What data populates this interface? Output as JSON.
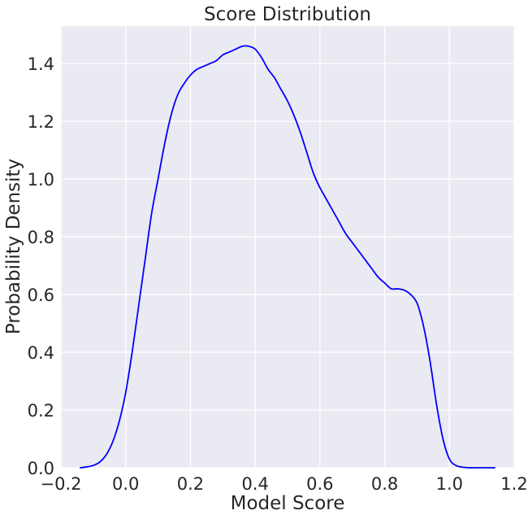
{
  "chart_data": {
    "type": "line",
    "title": "Score Distribution",
    "xlabel": "Model Score",
    "ylabel": "Probability Density",
    "xlim": [
      -0.2,
      1.2
    ],
    "ylim": [
      0.0,
      1.53
    ],
    "x_ticks": [
      -0.2,
      0.0,
      0.2,
      0.4,
      0.6,
      0.8,
      1.0,
      1.2
    ],
    "x_tick_labels": [
      "−0.2",
      "0.0",
      "0.2",
      "0.4",
      "0.6",
      "0.8",
      "1.0",
      "1.2"
    ],
    "y_ticks": [
      0.0,
      0.2,
      0.4,
      0.6,
      0.8,
      1.0,
      1.2,
      1.4
    ],
    "y_tick_labels": [
      "0.0",
      "0.2",
      "0.4",
      "0.6",
      "0.8",
      "1.0",
      "1.2",
      "1.4"
    ],
    "grid": true,
    "legend": "none",
    "background_color": "#eaeaf2",
    "series": [
      {
        "color": "#0000ff",
        "x": [
          -0.14,
          -0.12,
          -0.1,
          -0.08,
          -0.06,
          -0.04,
          -0.02,
          0.0,
          0.02,
          0.04,
          0.06,
          0.08,
          0.1,
          0.12,
          0.14,
          0.16,
          0.18,
          0.2,
          0.22,
          0.24,
          0.26,
          0.28,
          0.3,
          0.32,
          0.34,
          0.36,
          0.38,
          0.4,
          0.42,
          0.44,
          0.46,
          0.48,
          0.5,
          0.52,
          0.54,
          0.56,
          0.58,
          0.6,
          0.62,
          0.64,
          0.66,
          0.68,
          0.7,
          0.72,
          0.74,
          0.76,
          0.78,
          0.8,
          0.82,
          0.84,
          0.86,
          0.88,
          0.9,
          0.92,
          0.94,
          0.96,
          0.98,
          1.0,
          1.02,
          1.04,
          1.06,
          1.08,
          1.1,
          1.12,
          1.14
        ],
        "y": [
          0.0,
          0.003,
          0.008,
          0.02,
          0.045,
          0.09,
          0.16,
          0.26,
          0.4,
          0.56,
          0.72,
          0.88,
          1.0,
          1.12,
          1.22,
          1.29,
          1.33,
          1.36,
          1.38,
          1.39,
          1.4,
          1.41,
          1.43,
          1.44,
          1.45,
          1.46,
          1.46,
          1.45,
          1.42,
          1.38,
          1.35,
          1.31,
          1.27,
          1.22,
          1.16,
          1.09,
          1.02,
          0.97,
          0.93,
          0.89,
          0.85,
          0.81,
          0.78,
          0.75,
          0.72,
          0.69,
          0.66,
          0.64,
          0.62,
          0.62,
          0.615,
          0.6,
          0.57,
          0.49,
          0.37,
          0.22,
          0.1,
          0.03,
          0.008,
          0.002,
          0.0,
          0.0,
          0.0,
          0.0,
          0.0
        ]
      }
    ]
  }
}
